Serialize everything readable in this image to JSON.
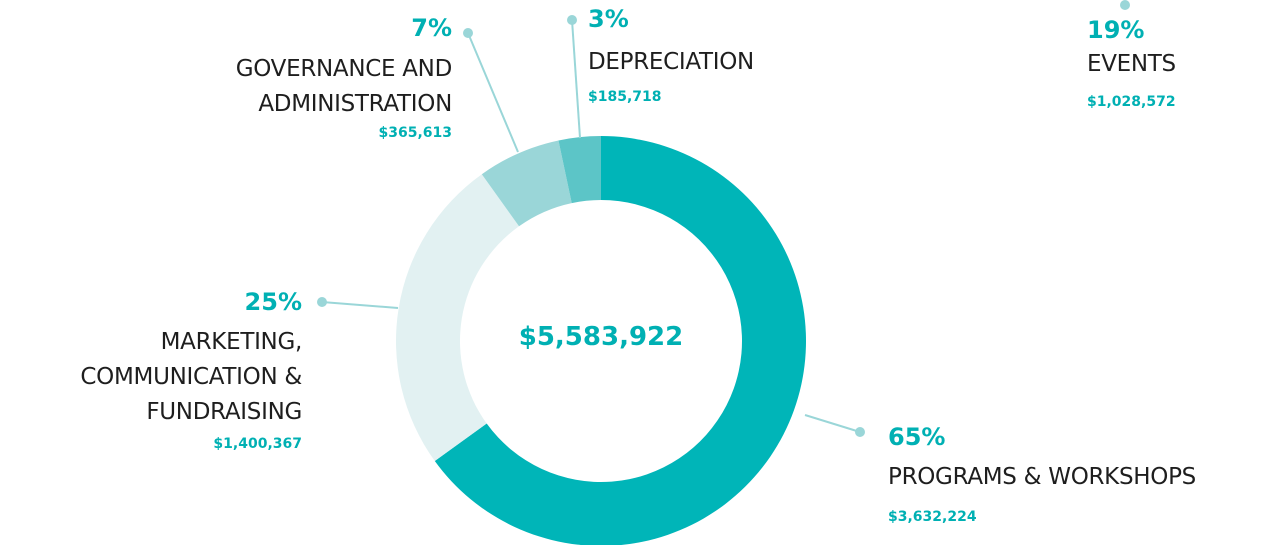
{
  "chart_data": {
    "type": "donut",
    "center_label": "$5,583,922",
    "categories": [
      "PROGRAMS & WORKSHOPS",
      "MARKETING,\nCOMMUNICATION &\nFUNDRAISING",
      "GOVERNANCE AND\nADMINISTRATION",
      "DEPRECIATION"
    ],
    "values": [
      3632224,
      1400367,
      365613,
      185718
    ],
    "value_labels": [
      "$3,632,224",
      "$1,400,367",
      "$365,613",
      "$185,718"
    ],
    "percent_labels": [
      "65%",
      "25%",
      "7%",
      "3%"
    ],
    "colors": [
      "#00b5b8",
      "#e2f1f2",
      "#9ad6d8",
      "#5cc5c7"
    ],
    "other_items": [
      {
        "name": "EVENTS",
        "percent_label": "19%",
        "value_label": "$1,028,572"
      }
    ]
  }
}
